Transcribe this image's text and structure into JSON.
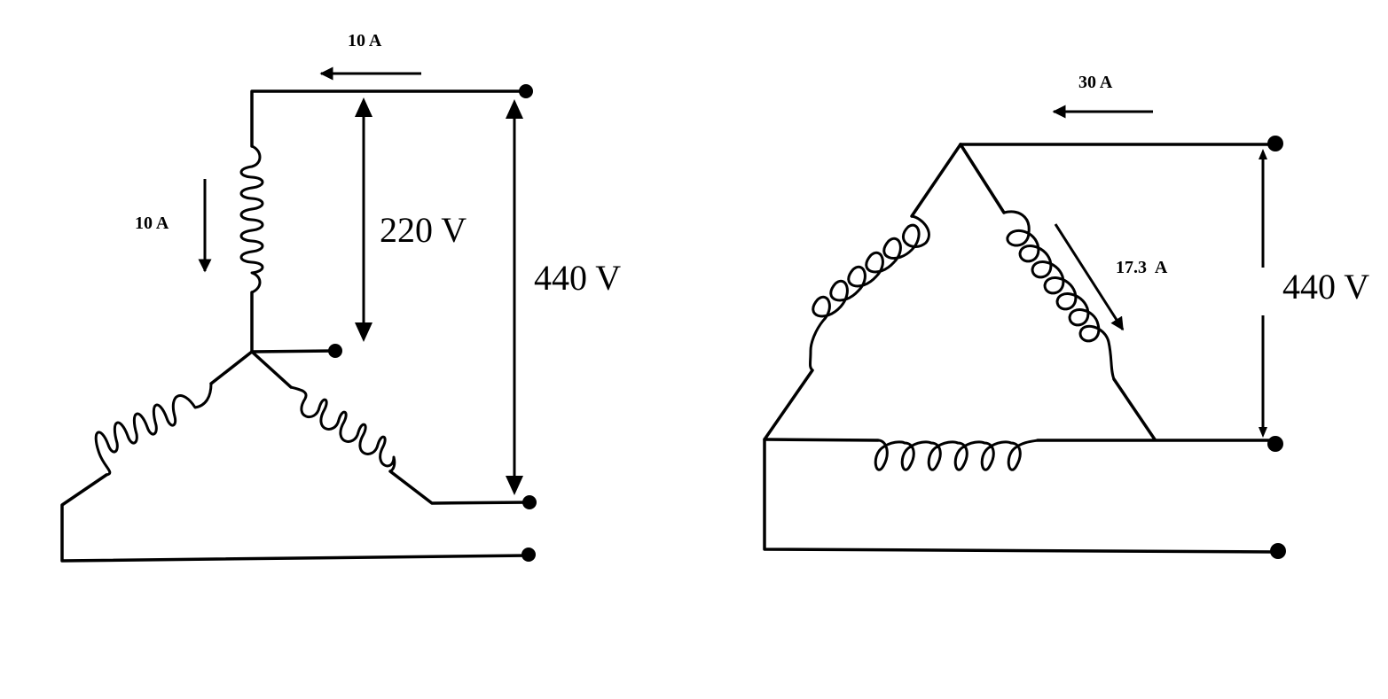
{
  "colors": {
    "ink": "#000000",
    "background": "#ffffff"
  },
  "star": {
    "line_current": "10 A",
    "phase_current": "10 A",
    "phase_voltage": "220 V",
    "line_voltage": "440 V"
  },
  "delta": {
    "line_current": "30 A",
    "phase_current": "17.3  A",
    "line_voltage": "440 V"
  }
}
